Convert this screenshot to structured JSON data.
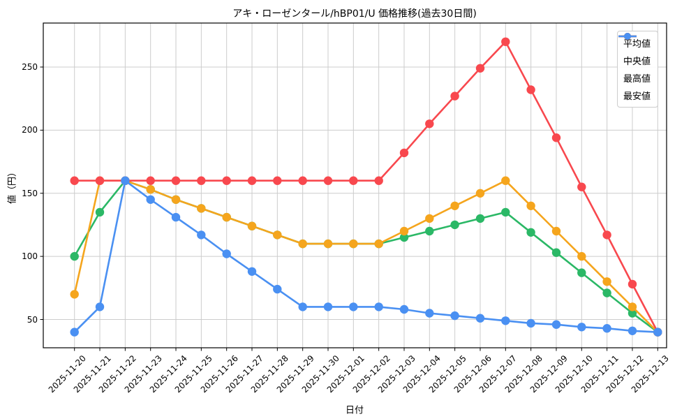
{
  "chart_data": {
    "type": "line",
    "title": "アキ・ローゼンタール/hBP01/U 価格推移(過去30日間)",
    "xlabel": "日付",
    "ylabel": "値（円）",
    "grid": true,
    "legend_position": "upper right",
    "yticks": [
      50,
      100,
      150,
      200,
      250
    ],
    "ylim": [
      27.5,
      285
    ],
    "x": [
      "2025-11-20",
      "2025-11-21",
      "2025-11-22",
      "2025-11-23",
      "2025-11-24",
      "2025-11-25",
      "2025-11-26",
      "2025-11-27",
      "2025-11-28",
      "2025-11-29",
      "2025-11-30",
      "2025-12-01",
      "2025-12-02",
      "2025-12-03",
      "2025-12-04",
      "2025-12-05",
      "2025-12-06",
      "2025-12-07",
      "2025-12-08",
      "2025-12-09",
      "2025-12-10",
      "2025-12-11",
      "2025-12-12",
      "2025-12-13"
    ],
    "series": [
      {
        "key": "avg",
        "name": "平均値",
        "color": "#2bb866",
        "values": [
          100,
          135,
          160,
          153,
          145,
          138,
          131,
          124,
          117,
          110,
          110,
          110,
          110,
          115,
          120,
          125,
          130,
          135,
          119,
          103,
          87,
          71,
          55,
          40
        ]
      },
      {
        "key": "median",
        "name": "中央値",
        "color": "#f5a51d",
        "values": [
          70,
          160,
          160,
          153,
          145,
          138,
          131,
          124,
          117,
          110,
          110,
          110,
          110,
          120,
          130,
          140,
          150,
          160,
          140,
          120,
          100,
          80,
          60,
          40
        ]
      },
      {
        "key": "max",
        "name": "最高値",
        "color": "#f8484e",
        "values": [
          160,
          160,
          160,
          160,
          160,
          160,
          160,
          160,
          160,
          160,
          160,
          160,
          160,
          182,
          205,
          227,
          249,
          270,
          232,
          194,
          155,
          117,
          78,
          40
        ]
      },
      {
        "key": "min",
        "name": "最安値",
        "color": "#4a90f2",
        "values": [
          40,
          60,
          160,
          145,
          131,
          117,
          102,
          88,
          74,
          60,
          60,
          60,
          60,
          58,
          55,
          53,
          51,
          49,
          47,
          46,
          44,
          43,
          41,
          40
        ]
      }
    ],
    "colors": {
      "grid": "#cccccc",
      "spine": "#000000",
      "background": "#ffffff"
    }
  }
}
